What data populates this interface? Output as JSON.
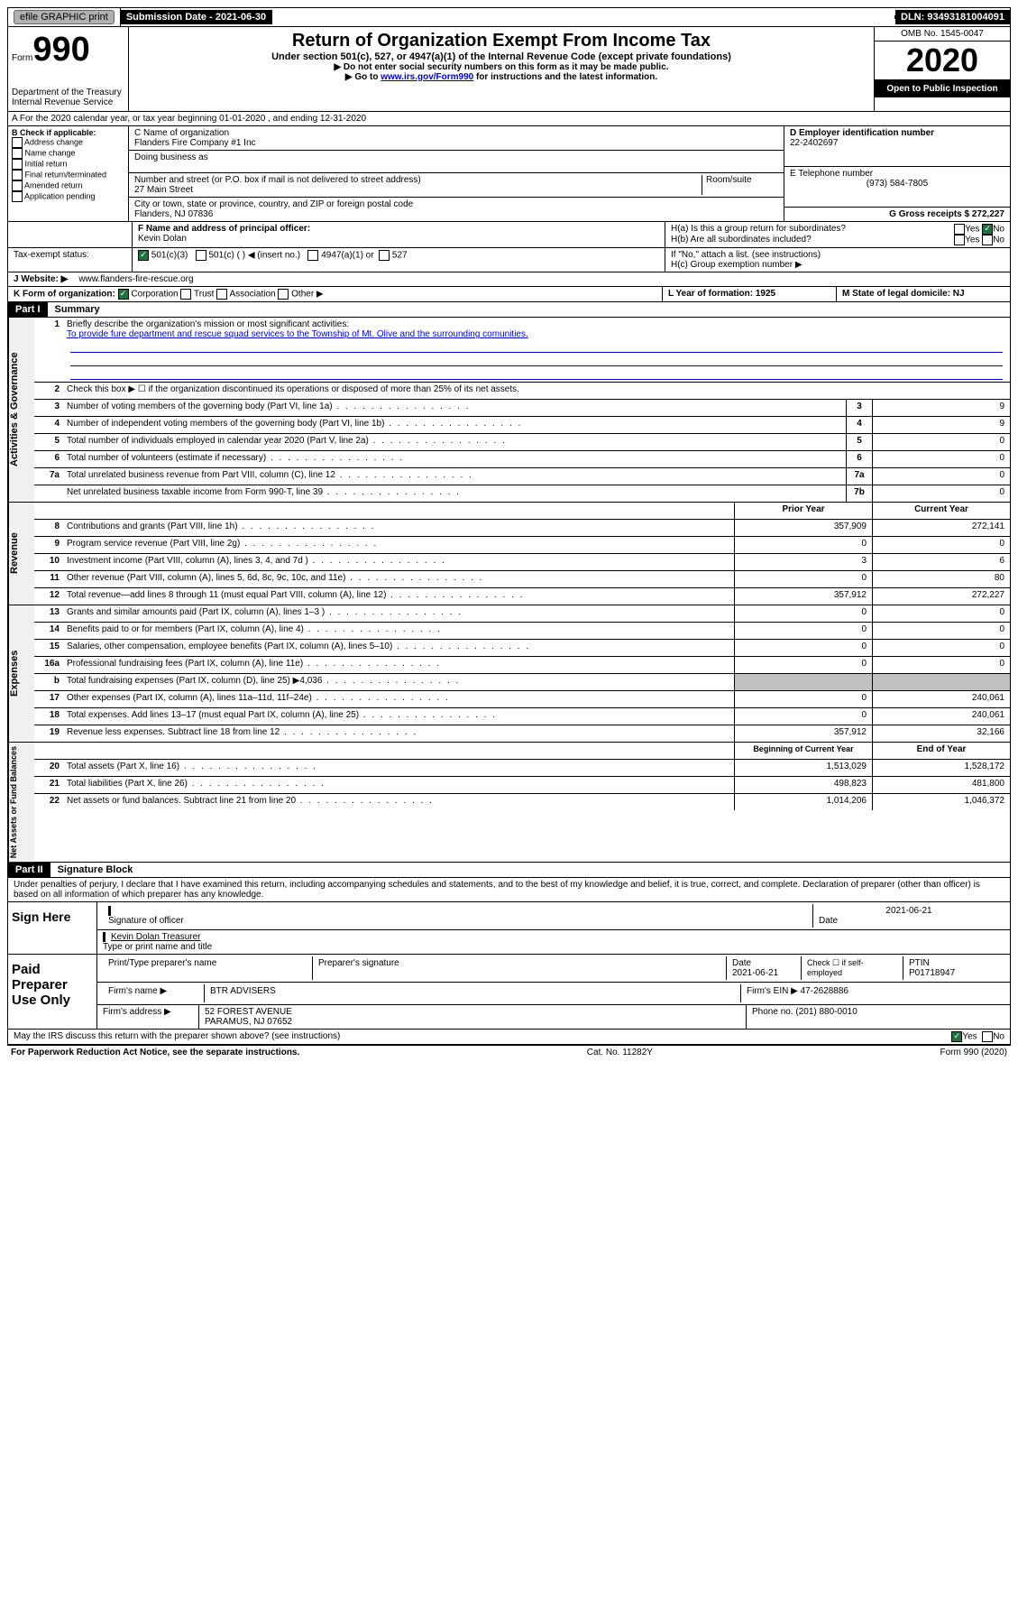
{
  "top": {
    "efile": "efile GRAPHIC print",
    "subdate_lbl": "Submission Date - 2021-06-30",
    "dln": "DLN: 93493181004091"
  },
  "header": {
    "form": "Form",
    "num": "990",
    "dept": "Department of the Treasury\nInternal Revenue Service",
    "title": "Return of Organization Exempt From Income Tax",
    "sub1": "Under section 501(c), 527, or 4947(a)(1) of the Internal Revenue Code (except private foundations)",
    "sub2": "▶ Do not enter social security numbers on this form as it may be made public.",
    "sub3_pre": "▶ Go to ",
    "sub3_link": "www.irs.gov/Form990",
    "sub3_post": " for instructions and the latest information.",
    "omb": "OMB No. 1545-0047",
    "year": "2020",
    "open": "Open to Public Inspection"
  },
  "rowA": "A For the 2020 calendar year, or tax year beginning 01-01-2020    , and ending 12-31-2020",
  "B": {
    "header": "B Check if applicable:",
    "items": [
      "Address change",
      "Name change",
      "Initial return",
      "Final return/terminated",
      "Amended return",
      "Application pending"
    ]
  },
  "C": {
    "name_lbl": "C Name of organization",
    "name": "Flanders Fire Company #1 Inc",
    "dba_lbl": "Doing business as",
    "addr_lbl": "Number and street (or P.O. box if mail is not delivered to street address)",
    "room_lbl": "Room/suite",
    "addr": "27 Main Street",
    "city_lbl": "City or town, state or province, country, and ZIP or foreign postal code",
    "city": "Flanders, NJ  07836"
  },
  "D": {
    "lbl": "D Employer identification number",
    "val": "22-2402697"
  },
  "E": {
    "lbl": "E Telephone number",
    "val": "(973) 584-7805"
  },
  "G": {
    "lbl": "G Gross receipts $ 272,227"
  },
  "F": {
    "lbl": "F  Name and address of principal officer:",
    "name": "Kevin Dolan"
  },
  "H": {
    "a": "H(a)  Is this a group return for subordinates?",
    "b": "H(b)  Are all subordinates included?",
    "b_note": "If \"No,\" attach a list. (see instructions)",
    "c": "H(c)  Group exemption number ▶",
    "yes": "Yes",
    "no": "No"
  },
  "I": {
    "lbl": "Tax-exempt status:",
    "o1": "501(c)(3)",
    "o2": "501(c) (   ) ◀ (insert no.)",
    "o3": "4947(a)(1) or",
    "o4": "527"
  },
  "J": {
    "lbl": "J  Website: ▶",
    "val": "www.flanders-fire-rescue.org"
  },
  "K": {
    "lbl": "K Form of organization:",
    "o1": "Corporation",
    "o2": "Trust",
    "o3": "Association",
    "o4": "Other ▶"
  },
  "L": {
    "lbl": "L Year of formation: 1925"
  },
  "M": {
    "lbl": "M State of legal domicile: NJ"
  },
  "part1": {
    "header": "Part I",
    "title": "Summary"
  },
  "summary": {
    "l1_lbl": "Briefly describe the organization's mission or most significant activities:",
    "l1_val": "To provide fure department and rescue squad services to the Township of Mt. Olive and the surrounding comunities.",
    "l2": "Check this box ▶ ☐  if the organization discontinued its operations or disposed of more than 25% of its net assets.",
    "rows_gov": [
      {
        "n": "3",
        "d": "Number of voting members of the governing body (Part VI, line 1a)",
        "b": "3",
        "v": "9"
      },
      {
        "n": "4",
        "d": "Number of independent voting members of the governing body (Part VI, line 1b)",
        "b": "4",
        "v": "9"
      },
      {
        "n": "5",
        "d": "Total number of individuals employed in calendar year 2020 (Part V, line 2a)",
        "b": "5",
        "v": "0"
      },
      {
        "n": "6",
        "d": "Total number of volunteers (estimate if necessary)",
        "b": "6",
        "v": "0"
      },
      {
        "n": "7a",
        "d": "Total unrelated business revenue from Part VIII, column (C), line 12",
        "b": "7a",
        "v": "0"
      },
      {
        "n": "",
        "d": "Net unrelated business taxable income from Form 990-T, line 39",
        "b": "7b",
        "v": "0"
      }
    ],
    "col_prior": "Prior Year",
    "col_curr": "Current Year",
    "rows_rev": [
      {
        "n": "8",
        "d": "Contributions and grants (Part VIII, line 1h)",
        "p": "357,909",
        "c": "272,141"
      },
      {
        "n": "9",
        "d": "Program service revenue (Part VIII, line 2g)",
        "p": "0",
        "c": "0"
      },
      {
        "n": "10",
        "d": "Investment income (Part VIII, column (A), lines 3, 4, and 7d )",
        "p": "3",
        "c": "6"
      },
      {
        "n": "11",
        "d": "Other revenue (Part VIII, column (A), lines 5, 6d, 8c, 9c, 10c, and 11e)",
        "p": "0",
        "c": "80"
      },
      {
        "n": "12",
        "d": "Total revenue—add lines 8 through 11 (must equal Part VIII, column (A), line 12)",
        "p": "357,912",
        "c": "272,227"
      }
    ],
    "rows_exp": [
      {
        "n": "13",
        "d": "Grants and similar amounts paid (Part IX, column (A), lines 1–3 )",
        "p": "0",
        "c": "0"
      },
      {
        "n": "14",
        "d": "Benefits paid to or for members (Part IX, column (A), line 4)",
        "p": "0",
        "c": "0"
      },
      {
        "n": "15",
        "d": "Salaries, other compensation, employee benefits (Part IX, column (A), lines 5–10)",
        "p": "0",
        "c": "0"
      },
      {
        "n": "16a",
        "d": "Professional fundraising fees (Part IX, column (A), line 11e)",
        "p": "0",
        "c": "0"
      },
      {
        "n": "b",
        "d": "Total fundraising expenses (Part IX, column (D), line 25) ▶4,036",
        "p": "gray",
        "c": "gray"
      },
      {
        "n": "17",
        "d": "Other expenses (Part IX, column (A), lines 11a–11d, 11f–24e)",
        "p": "0",
        "c": "240,061"
      },
      {
        "n": "18",
        "d": "Total expenses. Add lines 13–17 (must equal Part IX, column (A), line 25)",
        "p": "0",
        "c": "240,061"
      },
      {
        "n": "19",
        "d": "Revenue less expenses. Subtract line 18 from line 12",
        "p": "357,912",
        "c": "32,166"
      }
    ],
    "col_beg": "Beginning of Current Year",
    "col_end": "End of Year",
    "rows_net": [
      {
        "n": "20",
        "d": "Total assets (Part X, line 16)",
        "p": "1,513,029",
        "c": "1,528,172"
      },
      {
        "n": "21",
        "d": "Total liabilities (Part X, line 26)",
        "p": "498,823",
        "c": "481,800"
      },
      {
        "n": "22",
        "d": "Net assets or fund balances. Subtract line 21 from line 20",
        "p": "1,014,206",
        "c": "1,046,372"
      }
    ]
  },
  "sides": {
    "gov": "Activities & Governance",
    "rev": "Revenue",
    "exp": "Expenses",
    "net": "Net Assets or Fund Balances"
  },
  "part2": {
    "header": "Part II",
    "title": "Signature Block",
    "penalty": "Under penalties of perjury, I declare that I have examined this return, including accompanying schedules and statements, and to the best of my knowledge and belief, it is true, correct, and complete. Declaration of preparer (other than officer) is based on all information of which preparer has any knowledge."
  },
  "sign": {
    "here": "Sign Here",
    "sig_lbl": "Signature of officer",
    "date": "2021-06-21",
    "date_lbl": "Date",
    "name": "Kevin Dolan  Treasurer",
    "name_lbl": "Type or print name and title"
  },
  "paid": {
    "title": "Paid Preparer Use Only",
    "pname_lbl": "Print/Type preparer's name",
    "psig_lbl": "Preparer's signature",
    "pdate_lbl": "Date",
    "pdate": "2021-06-21",
    "self_lbl": "Check ☐ if self-employed",
    "ptin_lbl": "PTIN",
    "ptin": "P01718947",
    "firm_lbl": "Firm's name    ▶",
    "firm": "BTR ADVISERS",
    "ein_lbl": "Firm's EIN ▶",
    "ein": "47-2628886",
    "addr_lbl": "Firm's address ▶",
    "addr": "52 FOREST AVENUE\nPARAMUS, NJ  07652",
    "phone_lbl": "Phone no. (201) 880-0010"
  },
  "discuss": "May the IRS discuss this return with the preparer shown above? (see instructions)",
  "footer": {
    "left": "For Paperwork Reduction Act Notice, see the separate instructions.",
    "mid": "Cat. No. 11282Y",
    "right": "Form 990 (2020)"
  }
}
